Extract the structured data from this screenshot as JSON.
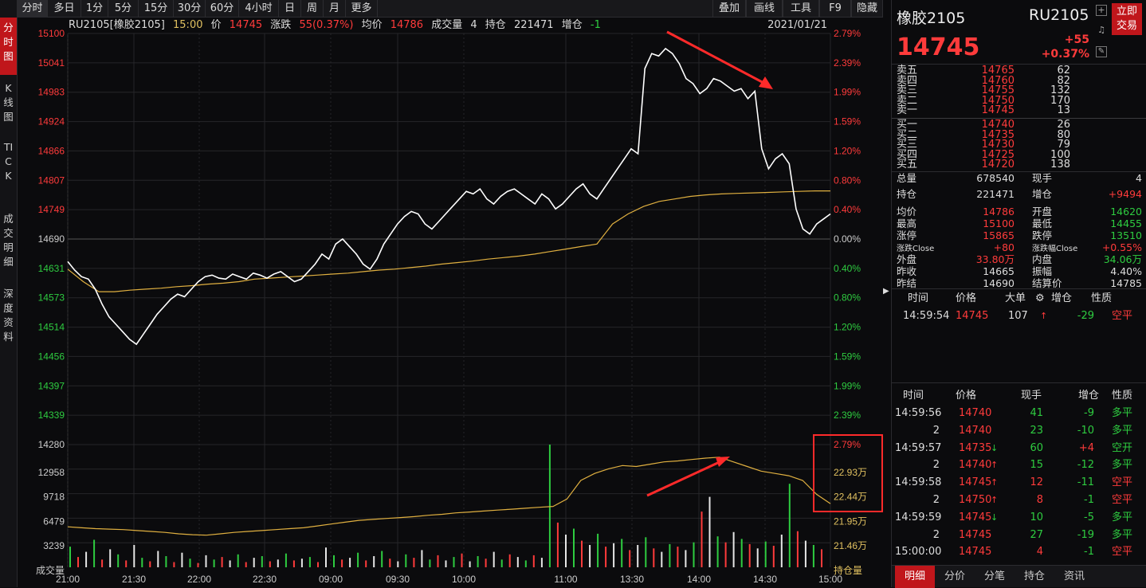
{
  "leftbar": [
    {
      "label": "分时图",
      "active": true
    },
    {
      "label": "K线图"
    },
    {
      "label": "TICK"
    },
    {
      "label": "成交明细"
    },
    {
      "label": "深度资料"
    }
  ],
  "toolbar": {
    "left": [
      "分时",
      "多日",
      "1分",
      "5分",
      "15分",
      "30分",
      "60分",
      "4小时",
      "日",
      "周",
      "月",
      "更多"
    ],
    "right": [
      "叠加",
      "画线",
      "工具",
      "F9",
      "隐藏"
    ]
  },
  "info": {
    "contract": "RU2105[橡胶2105]",
    "time": "15:00",
    "price_label": "价",
    "price": "14745",
    "change_label": "涨跌",
    "change": "55(0.37%)",
    "avg_label": "均价",
    "avg": "14786",
    "vol_label": "成交量",
    "vol": "4",
    "oi_label": "持仓",
    "oi": "221471",
    "oichg_label": "增仓",
    "oichg": "-1",
    "date": "2021/01/21"
  },
  "chart_data": {
    "type": "line",
    "price_ticks": [
      "15100",
      "15041",
      "14983",
      "14924",
      "14866",
      "14807",
      "14749",
      "14690",
      "14631",
      "14573",
      "14514",
      "14456",
      "14397",
      "14339"
    ],
    "pct_ticks": [
      "2.79%",
      "2.39%",
      "1.99%",
      "1.59%",
      "1.20%",
      "0.80%",
      "0.40%",
      "0.00%",
      "0.40%",
      "0.80%",
      "1.20%",
      "1.59%",
      "1.99%",
      "2.39%"
    ],
    "vol_ticks": [
      "14280",
      "12958",
      "9718",
      "6479",
      "3239",
      "成交量"
    ],
    "oi_ticks": [
      "2.79%",
      "22.93万",
      "22.44万",
      "21.95万",
      "21.46万",
      "持仓量"
    ],
    "x_ticks": [
      "21:00",
      "21:30",
      "22:00",
      "22:30",
      "09:00",
      "09:30",
      "10:00",
      "11:00",
      "13:30",
      "14:00",
      "14:30",
      "15:00"
    ],
    "price_range": [
      14280,
      15100
    ],
    "price_series": [
      14645,
      14628,
      14615,
      14610,
      14590,
      14560,
      14535,
      14520,
      14505,
      14490,
      14480,
      14500,
      14520,
      14540,
      14555,
      14570,
      14580,
      14575,
      14590,
      14605,
      14615,
      14618,
      14612,
      14610,
      14620,
      14615,
      14610,
      14622,
      14618,
      14612,
      14620,
      14625,
      14615,
      14605,
      14610,
      14625,
      14640,
      14660,
      14650,
      14680,
      14690,
      14675,
      14660,
      14640,
      14630,
      14650,
      14680,
      14700,
      14720,
      14735,
      14745,
      14740,
      14720,
      14710,
      14725,
      14740,
      14755,
      14770,
      14785,
      14780,
      14790,
      14770,
      14760,
      14775,
      14785,
      14790,
      14780,
      14770,
      14760,
      14780,
      14770,
      14750,
      14760,
      14775,
      14790,
      14800,
      14780,
      14770,
      14790,
      14810,
      14830,
      14850,
      14870,
      14860,
      15030,
      15060,
      15055,
      15070,
      15060,
      15040,
      15010,
      15000,
      14980,
      14990,
      15010,
      15005,
      14995,
      14985,
      14990,
      14970,
      14985,
      14870,
      14830,
      14850,
      14860,
      14840,
      14750,
      14710,
      14700,
      14720,
      14730,
      14740
    ],
    "avg_series": [
      14630,
      14605,
      14585,
      14585,
      14588,
      14590,
      14592,
      14595,
      14597,
      14600,
      14602,
      14605,
      14610,
      14612,
      14614,
      14616,
      14618,
      14620,
      14622,
      14625,
      14628,
      14630,
      14633,
      14636,
      14640,
      14643,
      14646,
      14650,
      14653,
      14656,
      14660,
      14665,
      14670,
      14675,
      14680,
      14720,
      14740,
      14755,
      14765,
      14770,
      14775,
      14778,
      14780,
      14781,
      14782,
      14783,
      14784,
      14785,
      14786,
      14786
    ],
    "volume_series": [
      2400,
      1200,
      1800,
      3200,
      900,
      2100,
      1500,
      800,
      2600,
      1100,
      700,
      1900,
      1300,
      600,
      1700,
      1000,
      500,
      1400,
      900,
      1200,
      800,
      1500,
      600,
      1100,
      1300,
      700,
      900,
      1600,
      800,
      1000,
      1200,
      600,
      2300,
      1400,
      900,
      1100,
      1700,
      800,
      1300,
      1900,
      1000,
      700,
      1500,
      1100,
      2000,
      900,
      1400,
      800,
      1200,
      1600,
      700,
      1300,
      1000,
      1800,
      900,
      1500,
      1200,
      800,
      1400,
      1100,
      14280,
      5200,
      3800,
      4500,
      3100,
      2600,
      3900,
      2400,
      2800,
      3300,
      2000,
      2600,
      3500,
      2200,
      1800,
      2700,
      2400,
      2000,
      2900,
      6479,
      8200,
      3600,
      2900,
      4100,
      3300,
      2700,
      2200,
      3000,
      2500,
      3800,
      9718,
      4200,
      3100,
      2600,
      2100
    ],
    "oi_series": [
      0.7,
      0.68,
      0.66,
      0.65,
      0.64,
      0.62,
      0.6,
      0.58,
      0.55,
      0.53,
      0.52,
      0.55,
      0.58,
      0.6,
      0.62,
      0.64,
      0.66,
      0.68,
      0.72,
      0.76,
      0.8,
      0.84,
      0.86,
      0.88,
      0.9,
      0.92,
      0.95,
      0.97,
      1.0,
      1.02,
      1.04,
      1.06,
      1.08,
      1.1,
      1.12,
      1.14,
      1.3,
      1.7,
      1.85,
      1.95,
      2.02,
      2.0,
      2.05,
      2.1,
      2.12,
      2.15,
      2.18,
      2.2,
      2.1,
      2.0,
      1.9,
      1.85,
      1.8,
      1.7,
      1.4,
      1.2
    ]
  },
  "header": {
    "name": "橡胶2105",
    "code": "RU2105",
    "price": "14745",
    "chg": "+55",
    "pct": "+0.37%",
    "trade_btn": "立即交易"
  },
  "orderbook": {
    "asks": [
      {
        "l": "卖五",
        "p": "14765",
        "v": "62"
      },
      {
        "l": "卖四",
        "p": "14760",
        "v": "82"
      },
      {
        "l": "卖三",
        "p": "14755",
        "v": "132"
      },
      {
        "l": "卖二",
        "p": "14750",
        "v": "170"
      },
      {
        "l": "卖一",
        "p": "14745",
        "v": "13"
      }
    ],
    "bids": [
      {
        "l": "买一",
        "p": "14740",
        "v": "26"
      },
      {
        "l": "买二",
        "p": "14735",
        "v": "80"
      },
      {
        "l": "买三",
        "p": "14730",
        "v": "79"
      },
      {
        "l": "买四",
        "p": "14725",
        "v": "100"
      },
      {
        "l": "买五",
        "p": "14720",
        "v": "138"
      }
    ]
  },
  "stats": [
    {
      "l1": "总量",
      "v1": "678540",
      "l2": "现手",
      "v2": "4",
      "c2": "w"
    },
    {
      "l1": "持仓",
      "v1": "221471",
      "l2": "增仓",
      "v2": "+9494",
      "c2": "r"
    },
    {
      "l1": "均价",
      "v1": "14786",
      "c1": "r",
      "l2": "开盘",
      "v2": "14620",
      "c2": "g"
    },
    {
      "l1": "最高",
      "v1": "15100",
      "c1": "r",
      "l2": "最低",
      "v2": "14455",
      "c2": "g"
    },
    {
      "l1": "涨停",
      "v1": "15865",
      "c1": "r",
      "l2": "跌停",
      "v2": "13510",
      "c2": "g"
    },
    {
      "l1": "涨跌Close",
      "v1": "+80",
      "c1": "r",
      "l2": "涨跌幅Close",
      "v2": "+0.55%",
      "c2": "r"
    },
    {
      "l1": "外盘",
      "v1": "33.80万",
      "c1": "r",
      "l2": "内盘",
      "v2": "34.06万",
      "c2": "g"
    },
    {
      "l1": "昨收",
      "v1": "14665",
      "l2": "振幅",
      "v2": "4.40%"
    },
    {
      "l1": "昨结",
      "v1": "14690",
      "l2": "结算价",
      "v2": "14785"
    }
  ],
  "big": {
    "h": [
      "时间",
      "价格",
      "大单",
      "增仓",
      "性质"
    ],
    "row": {
      "t": "14:59:54",
      "p": "14745",
      "v": "107",
      "a": "↑",
      "z": "-29",
      "x": "空平"
    }
  },
  "ticks": {
    "h": [
      "时间",
      "价格",
      "现手",
      "增仓",
      "性质"
    ],
    "rows": [
      {
        "t": "14:59:56",
        "p": "14740",
        "a": "",
        "v": "41",
        "z": "-9",
        "x": "多平",
        "xc": "g"
      },
      {
        "t": "2",
        "p": "14740",
        "a": "",
        "v": "23",
        "z": "-10",
        "x": "多平",
        "xc": "g"
      },
      {
        "t": "14:59:57",
        "p": "14735",
        "a": "↓",
        "ac": "g",
        "v": "60",
        "z": "+4",
        "x": "空开",
        "xc": "g"
      },
      {
        "t": "2",
        "p": "14740",
        "a": "↑",
        "ac": "r",
        "v": "15",
        "z": "-12",
        "x": "多平",
        "xc": "g"
      },
      {
        "t": "14:59:58",
        "p": "14745",
        "a": "↑",
        "ac": "r",
        "v": "12",
        "z": "-11",
        "x": "空平",
        "xc": "r"
      },
      {
        "t": "2",
        "p": "14750",
        "a": "↑",
        "ac": "r",
        "v": "8",
        "z": "-1",
        "x": "空平",
        "xc": "r"
      },
      {
        "t": "14:59:59",
        "p": "14745",
        "a": "↓",
        "ac": "g",
        "v": "10",
        "z": "-5",
        "x": "多平",
        "xc": "g"
      },
      {
        "t": "2",
        "p": "14745",
        "a": "",
        "v": "27",
        "z": "-19",
        "x": "多平",
        "xc": "g"
      },
      {
        "t": "15:00:00",
        "p": "14745",
        "a": "",
        "v": "4",
        "z": "-1",
        "x": "空平",
        "xc": "r"
      }
    ]
  },
  "bottom_tabs": [
    "明细",
    "分价",
    "分笔",
    "持仓",
    "资讯"
  ]
}
